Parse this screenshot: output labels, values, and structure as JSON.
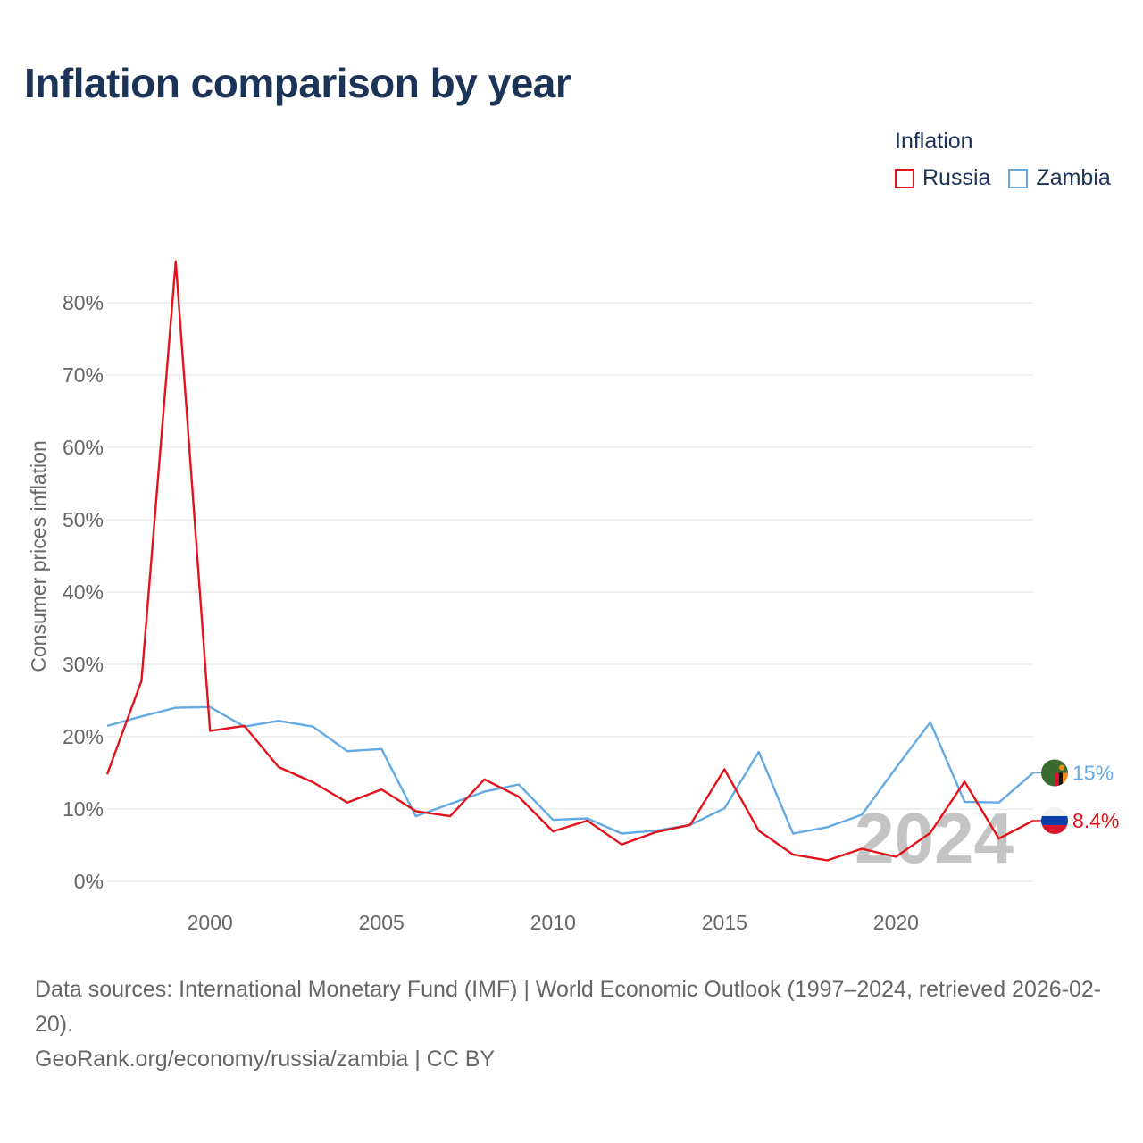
{
  "title": "Inflation comparison by year",
  "legend": {
    "title": "Inflation",
    "items": [
      {
        "label": "Russia",
        "color": "#e3121b"
      },
      {
        "label": "Zambia",
        "color": "#63a9e3"
      }
    ]
  },
  "chart_data": {
    "type": "line",
    "title": "Inflation comparison by year",
    "xlabel": "",
    "ylabel": "Consumer prices inflation",
    "x": [
      1997,
      1998,
      1999,
      2000,
      2001,
      2002,
      2003,
      2004,
      2005,
      2006,
      2007,
      2008,
      2009,
      2010,
      2011,
      2012,
      2013,
      2014,
      2015,
      2016,
      2017,
      2018,
      2019,
      2020,
      2021,
      2022,
      2023,
      2024
    ],
    "xlim": [
      1997,
      2024
    ],
    "ylim": [
      0,
      80
    ],
    "x_ticks": [
      2000,
      2005,
      2010,
      2015,
      2020
    ],
    "y_ticks": [
      0,
      10,
      20,
      30,
      40,
      50,
      60,
      70,
      80
    ],
    "y_tick_labels": [
      "0%",
      "10%",
      "20%",
      "30%",
      "40%",
      "50%",
      "60%",
      "70%",
      "80%"
    ],
    "grid": true,
    "year_watermark": "2024",
    "series": [
      {
        "name": "Russia",
        "color": "#e3121b",
        "values": [
          14.8,
          27.7,
          85.7,
          20.8,
          21.5,
          15.8,
          13.7,
          10.9,
          12.7,
          9.7,
          9.0,
          14.1,
          11.7,
          6.9,
          8.4,
          5.1,
          6.8,
          7.8,
          15.5,
          7.0,
          3.7,
          2.9,
          4.5,
          3.4,
          6.7,
          13.8,
          5.9,
          8.4
        ],
        "end_label": "8.4%",
        "flag": "russia-flag-icon"
      },
      {
        "name": "Zambia",
        "color": "#63a9e3",
        "values": [
          21.5,
          22.8,
          24.0,
          24.1,
          21.4,
          22.2,
          21.4,
          18.0,
          18.3,
          9.0,
          10.7,
          12.4,
          13.4,
          8.5,
          8.7,
          6.6,
          7.0,
          7.8,
          10.1,
          17.9,
          6.6,
          7.5,
          9.2,
          15.7,
          22.0,
          11.0,
          10.9,
          15.0
        ],
        "end_label": "15%",
        "flag": "zambia-flag-icon"
      }
    ]
  },
  "footer": {
    "sources": "Data sources: International Monetary Fund (IMF) | World Economic Outlook (1997–2024, retrieved 2026-02-20).",
    "credit": "GeoRank.org/economy/russia/zambia | CC BY"
  }
}
